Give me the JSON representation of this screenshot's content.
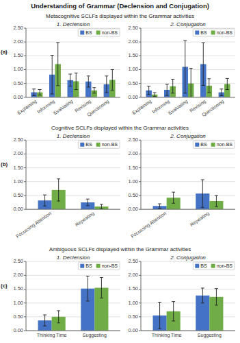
{
  "title": "Understanding of Grammar (Declension and Conjugation)",
  "row_labels": [
    "(a)",
    "(b)",
    "(c)"
  ],
  "section_titles": [
    "Metacognitive SCLFs displayed within the Grammar activities",
    "Cognitive SCLFs displayed within the Grammar activities",
    "Ambiguous SCLFs displayed within the Grammar activities"
  ],
  "chart_data": [
    {
      "type": "bar",
      "title": "1. Declension",
      "categories": [
        "Explaining",
        "Informing",
        "Evaluating",
        "Revising",
        "Questioning"
      ],
      "series": [
        {
          "name": "BS",
          "color": "#4472C4",
          "values": [
            0.18,
            0.82,
            0.62,
            0.57,
            0.47
          ],
          "errors": [
            0.12,
            0.7,
            0.22,
            0.2,
            0.3
          ]
        },
        {
          "name": "non-BS",
          "color": "#70AD47",
          "values": [
            0.18,
            1.2,
            0.58,
            0.25,
            0.63
          ],
          "errors": [
            0.1,
            0.78,
            0.3,
            0.1,
            0.37
          ]
        }
      ],
      "ylim": [
        0,
        2.5
      ],
      "yticks": [
        {
          "value": 0,
          "label": "0.00"
        },
        {
          "value": 0.5,
          "label": "0.50"
        },
        {
          "value": 1,
          "label": "1.00"
        },
        {
          "value": 1.5,
          "label": "1.50"
        },
        {
          "value": 2,
          "label": "2.00"
        },
        {
          "value": 2.5,
          "label": "2.50"
        }
      ],
      "grid": true,
      "legend": "upper right"
    },
    {
      "type": "bar",
      "title": "2. Conjugation",
      "categories": [
        "Explaining",
        "Informing",
        "Evaluating",
        "Revising",
        "Questioning"
      ],
      "series": [
        {
          "name": "BS",
          "color": "#4472C4",
          "values": [
            0.25,
            0.27,
            1.1,
            1.2,
            0.18
          ],
          "errors": [
            0.15,
            0.2,
            0.95,
            0.77,
            0.12
          ]
        },
        {
          "name": "non-BS",
          "color": "#70AD47",
          "values": [
            0.1,
            0.4,
            0.5,
            0.42,
            0.48
          ],
          "errors": [
            0.07,
            0.25,
            0.55,
            0.25,
            0.2
          ]
        }
      ],
      "ylim": [
        0,
        2.5
      ],
      "yticks": [
        {
          "value": 0,
          "label": "0.00"
        },
        {
          "value": 0.5,
          "label": "0.50"
        },
        {
          "value": 1,
          "label": "1.00"
        },
        {
          "value": 1.5,
          "label": "1.50"
        },
        {
          "value": 2,
          "label": "2.00"
        },
        {
          "value": 2.5,
          "label": "2.50"
        }
      ],
      "grid": true,
      "legend": "upper right"
    },
    {
      "type": "bar",
      "title": "1. Declension",
      "categories": [
        "Focussing Attention",
        "Repeating"
      ],
      "series": [
        {
          "name": "BS",
          "color": "#4472C4",
          "values": [
            0.32,
            0.25
          ],
          "errors": [
            0.2,
            0.12
          ]
        },
        {
          "name": "non-BS",
          "color": "#70AD47",
          "values": [
            0.7,
            0.1
          ],
          "errors": [
            0.4,
            0.08
          ]
        }
      ],
      "ylim": [
        0,
        2.5
      ],
      "yticks": [
        {
          "value": 0,
          "label": "0.00"
        },
        {
          "value": 0.5,
          "label": "0.50"
        },
        {
          "value": 1,
          "label": "1.00"
        },
        {
          "value": 1.5,
          "label": "1.50"
        },
        {
          "value": 2,
          "label": "2.00"
        },
        {
          "value": 2.5,
          "label": "2.50"
        }
      ],
      "grid": true,
      "legend": "upper right"
    },
    {
      "type": "bar",
      "title": "2. Conjugation",
      "categories": [
        "Focussing Attention",
        "Repeating"
      ],
      "series": [
        {
          "name": "BS",
          "color": "#4472C4",
          "values": [
            0.12,
            0.57
          ],
          "errors": [
            0.08,
            0.5
          ]
        },
        {
          "name": "non-BS",
          "color": "#70AD47",
          "values": [
            0.42,
            0.3
          ],
          "errors": [
            0.2,
            0.2
          ]
        }
      ],
      "ylim": [
        0,
        2.5
      ],
      "yticks": [
        {
          "value": 0,
          "label": "0.00"
        },
        {
          "value": 0.5,
          "label": "0.50"
        },
        {
          "value": 1,
          "label": "1.00"
        },
        {
          "value": 1.5,
          "label": "1.50"
        },
        {
          "value": 2,
          "label": "2.00"
        },
        {
          "value": 2.5,
          "label": "2.50"
        }
      ],
      "grid": true,
      "legend": "upper right"
    },
    {
      "type": "bar",
      "title": "1. Declension",
      "categories": [
        "Thinking Time",
        "Suggesting"
      ],
      "series": [
        {
          "name": "BS",
          "color": "#4472C4",
          "values": [
            0.37,
            1.52
          ],
          "errors": [
            0.2,
            0.45
          ]
        },
        {
          "name": "non-BS",
          "color": "#70AD47",
          "values": [
            0.5,
            1.55
          ],
          "errors": [
            0.22,
            0.37
          ]
        }
      ],
      "ylim": [
        0,
        2.5
      ],
      "yticks": [
        {
          "value": 0,
          "label": "0.00"
        },
        {
          "value": 0.5,
          "label": "0.50"
        },
        {
          "value": 1,
          "label": "1.00"
        },
        {
          "value": 1.5,
          "label": "1.50"
        },
        {
          "value": 2,
          "label": "2.00"
        },
        {
          "value": 2.5,
          "label": "2.50"
        }
      ],
      "grid": true,
      "legend": "upper right"
    },
    {
      "type": "bar",
      "title": "2. Conjugation",
      "categories": [
        "Thinking Time",
        "Suggesting"
      ],
      "series": [
        {
          "name": "BS",
          "color": "#4472C4",
          "values": [
            0.55,
            1.27
          ],
          "errors": [
            0.48,
            0.27
          ]
        },
        {
          "name": "non-BS",
          "color": "#70AD47",
          "values": [
            0.7,
            1.22
          ],
          "errors": [
            0.35,
            0.3
          ]
        }
      ],
      "ylim": [
        0,
        2.5
      ],
      "yticks": [
        {
          "value": 0,
          "label": "0.00"
        },
        {
          "value": 0.5,
          "label": "0.50"
        },
        {
          "value": 1,
          "label": "1.00"
        },
        {
          "value": 1.5,
          "label": "1.50"
        },
        {
          "value": 2,
          "label": "2.00"
        },
        {
          "value": 2.5,
          "label": "2.50"
        }
      ],
      "grid": true,
      "legend": "upper right"
    }
  ]
}
